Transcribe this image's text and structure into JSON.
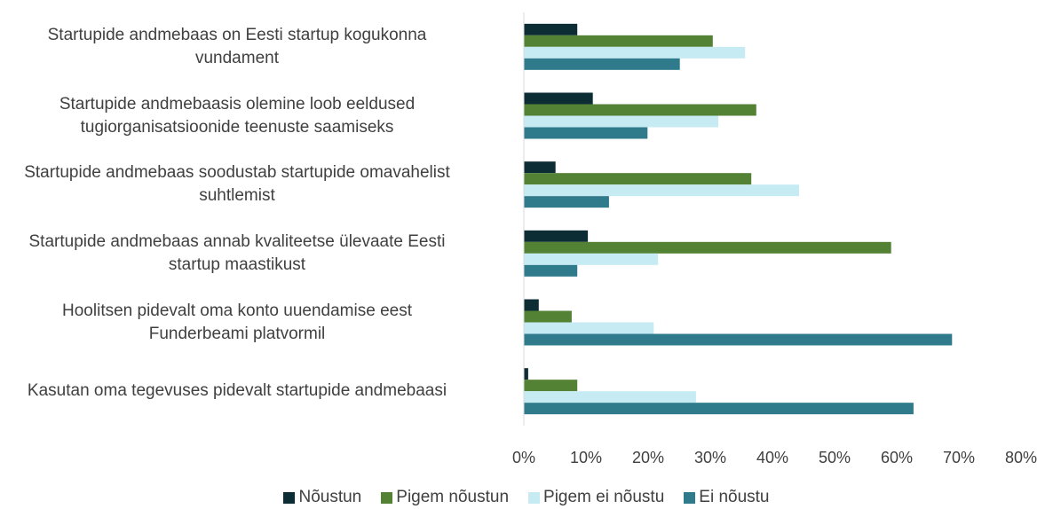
{
  "chart_data": {
    "type": "bar",
    "orientation": "horizontal",
    "categories": [
      "Startupide andmebaas on Eesti startup kogukonna\nvundament",
      "Startupide andmebaasis olemine loob eeldused\ntugiorganisatsioonide teenuste saamiseks",
      "Startupide andmebaas soodustab startupide omavahelist\nsuhtlemist",
      "Startupide andmebaas annab kvaliteetse ülevaate Eesti\nstartup maastikust",
      "Hoolitsen pidevalt oma konto uuendamise eest\nFunderbeami platvormil",
      "Kasutan oma tegevuses pidevalt startupide andmebaasi"
    ],
    "series": [
      {
        "name": "Nõustun",
        "color": "#0d2d34",
        "values": [
          8.6,
          11.1,
          5.1,
          10.3,
          2.4,
          0.7
        ]
      },
      {
        "name": "Pigem nõustun",
        "color": "#548235",
        "values": [
          30.4,
          37.4,
          36.6,
          59.1,
          7.7,
          8.6
        ]
      },
      {
        "name": "Pigem ei nõustu",
        "color": "#c6ebf3",
        "values": [
          35.6,
          31.3,
          44.3,
          21.6,
          20.9,
          27.7
        ]
      },
      {
        "name": "Ei nõustu",
        "color": "#2f7a8b",
        "values": [
          25.1,
          19.9,
          13.7,
          8.6,
          68.9,
          62.7
        ]
      }
    ],
    "xlim": [
      0,
      80
    ],
    "xticks": [
      {
        "value": 0,
        "label": "0%"
      },
      {
        "value": 10,
        "label": "10%"
      },
      {
        "value": 20,
        "label": "20%"
      },
      {
        "value": 30,
        "label": "30%"
      },
      {
        "value": 40,
        "label": "40%"
      },
      {
        "value": 50,
        "label": "50%"
      },
      {
        "value": 60,
        "label": "60%"
      },
      {
        "value": 70,
        "label": "70%"
      },
      {
        "value": 80,
        "label": "80%"
      }
    ],
    "legend": "bottom"
  }
}
